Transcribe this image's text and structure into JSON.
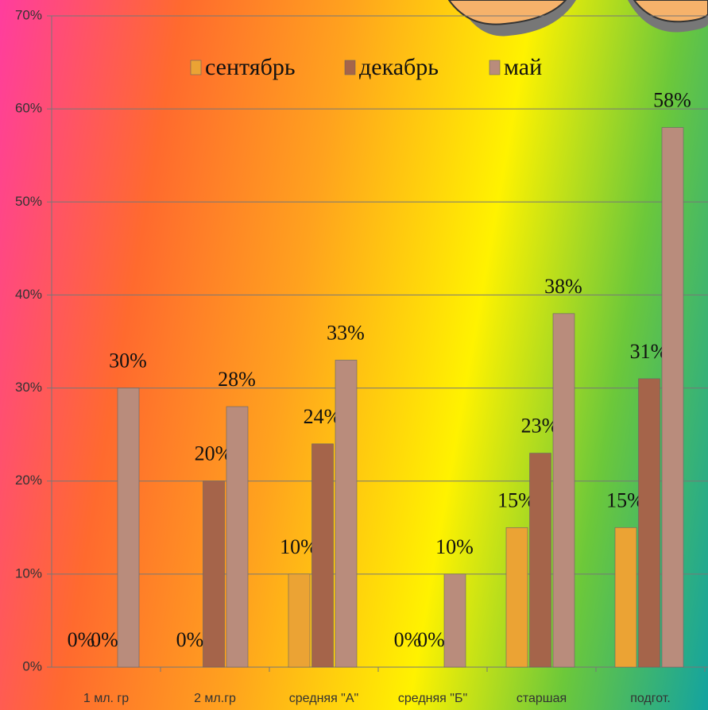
{
  "chart_data": {
    "type": "bar",
    "categories": [
      "1 мл. гр",
      "2 мл.гр",
      "средняя \"А\"",
      "средняя \"Б\"",
      "старшая",
      "подгот."
    ],
    "series": [
      {
        "name": "сентябрь",
        "color": "#eba334",
        "values": [
          0,
          0,
          10,
          0,
          15,
          15
        ],
        "value_labels": [
          "0%",
          "0%",
          "10%",
          "0%",
          "15%",
          "15%"
        ]
      },
      {
        "name": "декабрь",
        "color": "#a5644a",
        "values": [
          0,
          20,
          24,
          0,
          23,
          31
        ],
        "value_labels": [
          "0%",
          "20%",
          "24%",
          "0%",
          "23%",
          "31%"
        ]
      },
      {
        "name": "май",
        "color": "#b98c7c",
        "values": [
          30,
          28,
          33,
          10,
          38,
          58
        ],
        "value_labels": [
          "30%",
          "28%",
          "33%",
          "10%",
          "38%",
          "58%"
        ]
      }
    ],
    "ylim": [
      0,
      70
    ],
    "yticks": [
      {
        "value": 0,
        "label": "0%"
      },
      {
        "value": 10,
        "label": "10%"
      },
      {
        "value": 20,
        "label": "20%"
      },
      {
        "value": 30,
        "label": "30%"
      },
      {
        "value": 40,
        "label": "40%"
      },
      {
        "value": 50,
        "label": "50%"
      },
      {
        "value": 60,
        "label": "60%"
      },
      {
        "value": 70,
        "label": "70%"
      }
    ],
    "grid": true,
    "legend": "top"
  }
}
